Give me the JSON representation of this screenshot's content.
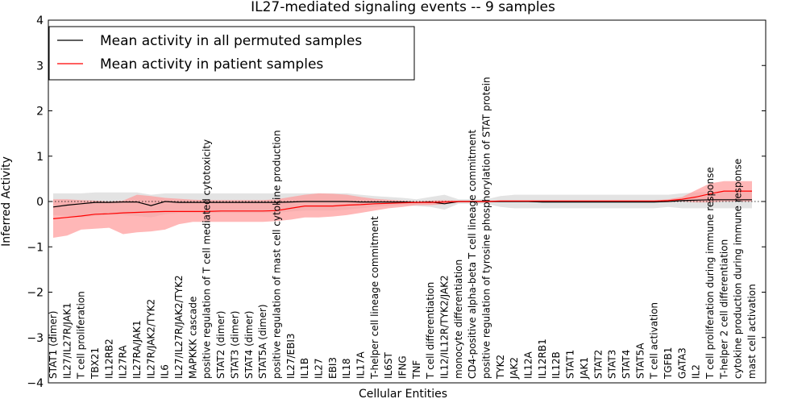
{
  "chart_data": {
    "type": "line",
    "title": "IL27-mediated signaling events -- 9 samples",
    "xlabel": "Cellular Entities",
    "ylabel": "Inferred Activity",
    "ylim": [
      -4,
      4
    ],
    "yticks": [
      "4",
      "3",
      "2",
      "1",
      "0",
      "−1",
      "−2",
      "−3",
      "−4"
    ],
    "legend": {
      "placement": "top-left",
      "entries": [
        "Mean activity in all permuted samples",
        "Mean activity in patient samples"
      ]
    },
    "colors": {
      "permuted": "#000000",
      "patient": "#ff0000",
      "patient_band": "#ff9999",
      "permuted_band": "#cccccc"
    },
    "categories": [
      "STAT1 (dimer)",
      "IL27/IL27R/JAK1",
      "T cell proliferation",
      "TBX21",
      "IL12RB2",
      "IL27RA",
      "IL27RA/JAK1",
      "IL27R/JAK2/TYK2",
      "IL6",
      "IL27/IL27R/JAK2/TYK2",
      "MAPKKK cascade",
      "positive regulation of T cell mediated cytotoxicity",
      "STAT2 (dimer)",
      "STAT3 (dimer)",
      "STAT4 (dimer)",
      "STAT5A (dimer)",
      "positive regulation of mast cell cytokine production",
      "IL27/EBI3",
      "IL1B",
      "IL27",
      "EBI3",
      "IL18",
      "IL17A",
      "T-helper cell lineage commitment",
      "IL6ST",
      "IFNG",
      "TNF",
      "T cell differentiation",
      "IL12/IL12R/TYK2/JAK2",
      "monocyte differentiation",
      "CD4-positive alpha-beta T cell lineage commitment",
      "positive regulation of tyrosine phosphorylation of STAT protein",
      "TYK2",
      "JAK2",
      "IL12A",
      "IL12RB1",
      "IL12B",
      "STAT1",
      "JAK1",
      "STAT2",
      "STAT3",
      "STAT4",
      "STAT5A",
      "T cell activation",
      "TGFB1",
      "GATA3",
      "IL2",
      "T cell proliferation during immune response",
      "T-helper 2 cell differentiation",
      "cytokine production during immune response",
      "mast cell activation"
    ],
    "series": [
      {
        "name": "Mean activity in all permuted samples",
        "values": [
          -0.12,
          -0.08,
          -0.05,
          -0.02,
          -0.02,
          -0.01,
          -0.01,
          -0.09,
          0.0,
          -0.02,
          -0.02,
          -0.02,
          -0.02,
          -0.02,
          -0.02,
          -0.02,
          -0.02,
          -0.01,
          0.0,
          0.0,
          0.0,
          0.0,
          -0.01,
          -0.01,
          -0.01,
          -0.01,
          -0.02,
          -0.01,
          -0.05,
          0.0,
          0.0,
          0.0,
          0.0,
          0.0,
          0.0,
          -0.01,
          -0.01,
          -0.01,
          -0.01,
          -0.01,
          -0.01,
          -0.01,
          -0.01,
          -0.01,
          0.0,
          0.02,
          0.03,
          0.04,
          0.04,
          0.04,
          0.04
        ],
        "upper": [
          0.18,
          0.18,
          0.18,
          0.2,
          0.2,
          0.2,
          0.2,
          0.15,
          0.18,
          0.18,
          0.18,
          0.18,
          0.18,
          0.18,
          0.18,
          0.18,
          0.18,
          0.18,
          0.18,
          0.18,
          0.18,
          0.18,
          0.15,
          0.12,
          0.1,
          0.08,
          0.05,
          0.1,
          0.15,
          0.05,
          0.05,
          0.05,
          0.12,
          0.15,
          0.15,
          0.15,
          0.15,
          0.15,
          0.15,
          0.15,
          0.15,
          0.15,
          0.15,
          0.15,
          0.15,
          0.18,
          0.2,
          0.22,
          0.22,
          0.22,
          0.22
        ],
        "lower": [
          -0.3,
          -0.32,
          -0.35,
          -0.32,
          -0.3,
          -0.3,
          -0.32,
          -0.35,
          -0.28,
          -0.25,
          -0.25,
          -0.25,
          -0.25,
          -0.25,
          -0.25,
          -0.25,
          -0.25,
          -0.22,
          -0.2,
          -0.2,
          -0.2,
          -0.18,
          -0.15,
          -0.12,
          -0.1,
          -0.08,
          -0.1,
          -0.12,
          -0.18,
          -0.05,
          -0.05,
          -0.05,
          -0.12,
          -0.15,
          -0.15,
          -0.15,
          -0.15,
          -0.15,
          -0.15,
          -0.15,
          -0.15,
          -0.15,
          -0.15,
          -0.15,
          -0.12,
          -0.15,
          -0.15,
          -0.15,
          -0.15,
          -0.15,
          -0.15
        ]
      },
      {
        "name": "Mean activity in patient samples",
        "values": [
          -0.38,
          -0.35,
          -0.32,
          -0.28,
          -0.27,
          -0.25,
          -0.24,
          -0.23,
          -0.22,
          -0.22,
          -0.22,
          -0.22,
          -0.21,
          -0.21,
          -0.21,
          -0.21,
          -0.2,
          -0.15,
          -0.1,
          -0.1,
          -0.1,
          -0.08,
          -0.07,
          -0.05,
          -0.04,
          -0.03,
          -0.02,
          -0.02,
          -0.01,
          0.0,
          0.0,
          0.0,
          0.01,
          0.01,
          0.01,
          0.01,
          0.01,
          0.01,
          0.01,
          0.01,
          0.01,
          0.01,
          0.01,
          0.01,
          0.02,
          0.05,
          0.1,
          0.17,
          0.23,
          0.23,
          0.23
        ],
        "upper": [
          0.05,
          0.05,
          0.03,
          0.02,
          0.0,
          0.02,
          0.15,
          0.12,
          0.08,
          0.06,
          0.04,
          0.03,
          0.03,
          0.03,
          0.03,
          0.03,
          0.05,
          0.1,
          0.15,
          0.18,
          0.17,
          0.15,
          0.1,
          0.06,
          0.04,
          0.02,
          0.0,
          0.02,
          0.03,
          0.02,
          0.02,
          0.02,
          0.02,
          0.02,
          0.02,
          0.02,
          0.02,
          0.02,
          0.02,
          0.02,
          0.02,
          0.02,
          0.02,
          0.02,
          0.05,
          0.1,
          0.25,
          0.4,
          0.45,
          0.45,
          0.45
        ],
        "lower": [
          -0.8,
          -0.75,
          -0.62,
          -0.6,
          -0.58,
          -0.72,
          -0.68,
          -0.66,
          -0.62,
          -0.5,
          -0.45,
          -0.45,
          -0.45,
          -0.45,
          -0.45,
          -0.45,
          -0.43,
          -0.4,
          -0.35,
          -0.35,
          -0.33,
          -0.3,
          -0.25,
          -0.2,
          -0.15,
          -0.12,
          -0.08,
          -0.08,
          -0.06,
          -0.02,
          -0.02,
          -0.02,
          -0.01,
          -0.01,
          -0.01,
          -0.01,
          -0.01,
          -0.01,
          -0.01,
          -0.01,
          -0.01,
          -0.01,
          -0.01,
          -0.01,
          -0.01,
          0.0,
          -0.02,
          -0.02,
          0.0,
          0.0,
          0.0
        ]
      }
    ]
  }
}
